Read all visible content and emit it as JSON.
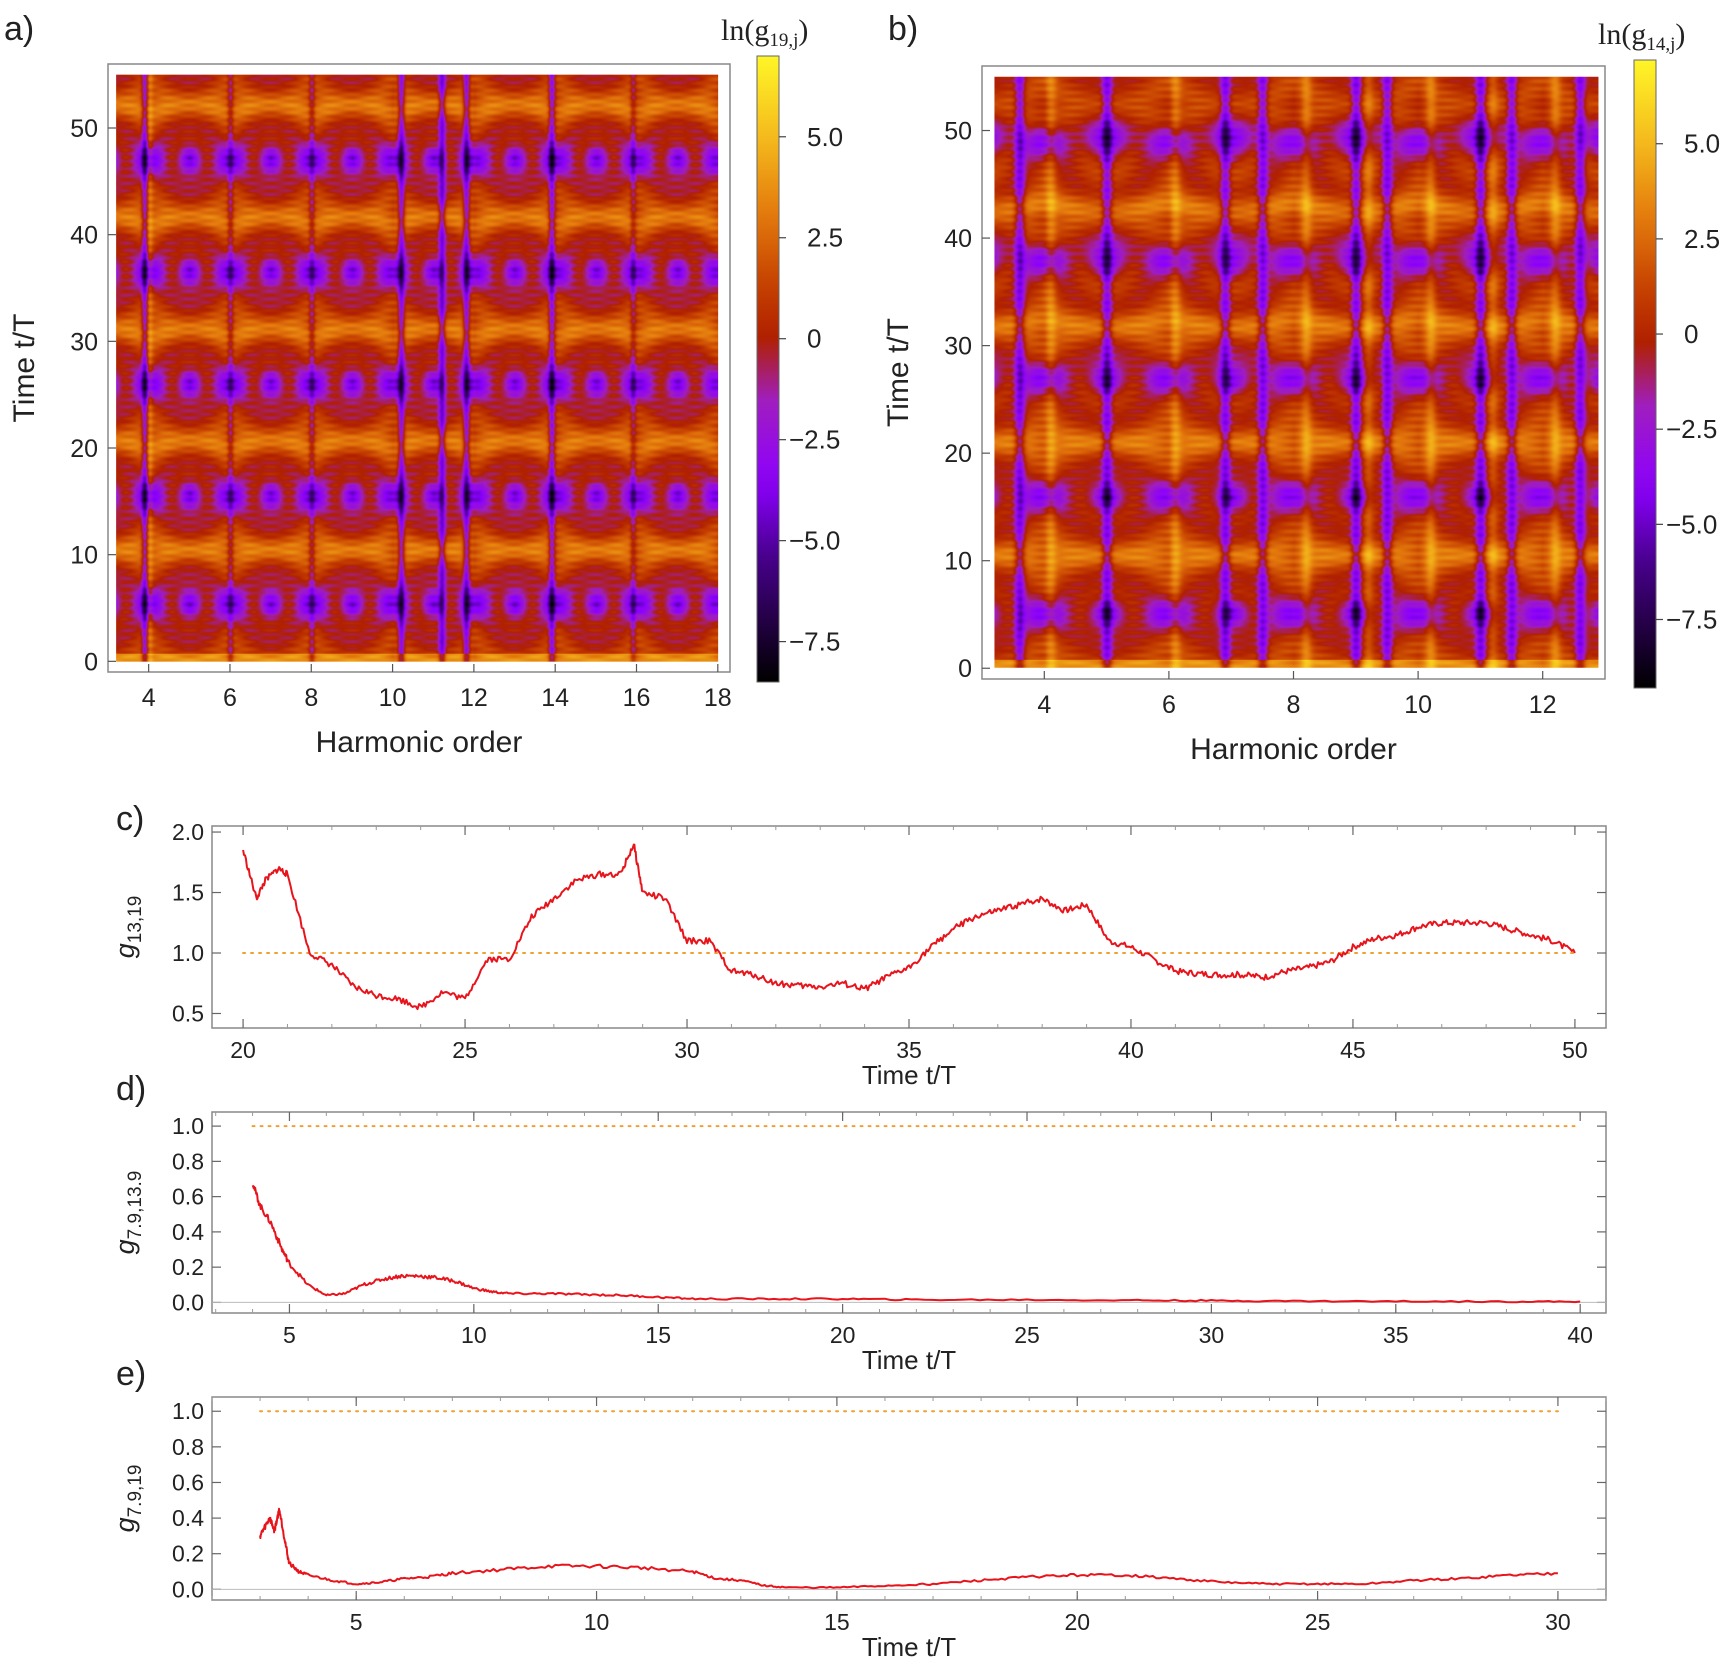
{
  "figure": {
    "accent_colors": {
      "trace": "#e8141c",
      "reference": "#f0a030",
      "frame": "#888888"
    }
  },
  "chart_data": [
    {
      "id": "a",
      "panel_label": "a)",
      "type": "heatmap",
      "xlabel": "Harmonic order",
      "ylabel": "Time  t/T",
      "xlim": [
        3,
        18.3
      ],
      "ylim": [
        -1,
        56
      ],
      "x_ticks": [
        "4",
        "6",
        "8",
        "10",
        "12",
        "14",
        "16",
        "18"
      ],
      "y_ticks": [
        "0",
        "10",
        "20",
        "30",
        "40",
        "50"
      ],
      "colorbar_title": "ln(g19,j)",
      "colorbar_title_main": "ln(g",
      "colorbar_title_sub": "19,j",
      "colorbar_title_close": ")",
      "colorbar_range": [
        -8.5,
        7.0
      ],
      "colorbar_ticks": [
        "5.0",
        "2.5",
        "0",
        "−2.5",
        "−5.0",
        "−7.5"
      ],
      "colorbar_tick_values": [
        5.0,
        2.5,
        0,
        -2.5,
        -5.0,
        -7.5
      ],
      "x_extent": [
        3.2,
        18.0
      ],
      "y_extent": [
        0,
        55
      ],
      "valley_harmonics": [
        3.9,
        6.0,
        8.0,
        10.2,
        11.2,
        11.8,
        13.9,
        15.9
      ],
      "bright_harmonics": [
        4.0,
        6.0,
        8.0,
        15.9
      ],
      "low_bands": [
        5.5,
        15.5,
        26,
        36.5,
        47
      ],
      "high_bands": [
        10.5,
        20.5,
        31,
        41.5,
        52
      ],
      "value_range": [
        -7.5,
        6.5
      ]
    },
    {
      "id": "b",
      "panel_label": "b)",
      "type": "heatmap",
      "xlabel": "Harmonic order",
      "ylabel": "Time  t/T",
      "xlim": [
        3,
        13
      ],
      "ylim": [
        -1,
        56
      ],
      "x_ticks": [
        "4",
        "6",
        "8",
        "10",
        "12"
      ],
      "y_ticks": [
        "0",
        "10",
        "20",
        "30",
        "40",
        "50"
      ],
      "colorbar_title": "ln(g14,j)",
      "colorbar_title_main": "ln(g",
      "colorbar_title_sub": "14,j",
      "colorbar_title_close": ")",
      "colorbar_range": [
        -9.3,
        7.2
      ],
      "colorbar_ticks": [
        "5.0",
        "2.5",
        "0",
        "−2.5",
        "−5.0",
        "−7.5"
      ],
      "colorbar_tick_values": [
        5.0,
        2.5,
        0,
        -2.5,
        -5.0,
        -7.5
      ],
      "x_extent": [
        3.2,
        12.9
      ],
      "y_extent": [
        0,
        55
      ],
      "valley_harmonics": [
        3.6,
        5.0,
        6.9,
        7.5,
        9.0,
        9.5,
        11.0,
        11.5,
        12.6
      ],
      "bright_harmonics": [
        4.1,
        6.1,
        8.2,
        9.2,
        10.2,
        11.2,
        12.2
      ],
      "low_bands": [
        5,
        16,
        27,
        38,
        49
      ],
      "high_bands": [
        10.5,
        21,
        32,
        43
      ],
      "value_range": [
        -7.5,
        5.5
      ]
    },
    {
      "id": "c",
      "panel_label": "c)",
      "type": "line",
      "xlabel": "Time  t/T",
      "ylabel_main": "g",
      "ylabel_sub": "13,19",
      "xlim": [
        19.3,
        50.7
      ],
      "ylim": [
        0.38,
        2.05
      ],
      "x_ticks": [
        20,
        25,
        30,
        35,
        40,
        45,
        50
      ],
      "y_ticks": [
        0.5,
        1.0,
        1.5,
        2.0
      ],
      "y_tick_labels": [
        "0.5",
        "1.0",
        "1.5",
        "2.0"
      ],
      "reference_line": 1.0,
      "series": [
        {
          "name": "g13,19",
          "x": [
            20.0,
            20.3,
            20.5,
            20.8,
            21.0,
            21.5,
            22.0,
            22.5,
            23.0,
            23.5,
            24.0,
            24.5,
            25.0,
            25.5,
            26.0,
            26.5,
            27.0,
            27.5,
            28.0,
            28.5,
            28.8,
            29.0,
            29.5,
            30.0,
            30.5,
            31.0,
            31.5,
            32.0,
            32.5,
            33.0,
            33.5,
            34.0,
            34.5,
            35.0,
            35.5,
            36.0,
            36.5,
            37.0,
            37.5,
            38.0,
            38.5,
            39.0,
            39.5,
            40.0,
            40.5,
            41.0,
            41.5,
            42.0,
            42.5,
            43.0,
            43.5,
            44.0,
            44.5,
            45.0,
            45.5,
            46.0,
            46.5,
            47.0,
            47.5,
            48.0,
            48.5,
            49.0,
            49.5,
            50.0
          ],
          "values": [
            1.85,
            1.45,
            1.6,
            1.7,
            1.65,
            1.0,
            0.9,
            0.72,
            0.65,
            0.62,
            0.55,
            0.68,
            0.62,
            0.95,
            0.95,
            1.3,
            1.45,
            1.6,
            1.65,
            1.65,
            1.9,
            1.5,
            1.45,
            1.1,
            1.1,
            0.85,
            0.82,
            0.75,
            0.73,
            0.72,
            0.75,
            0.7,
            0.8,
            0.88,
            1.05,
            1.2,
            1.3,
            1.35,
            1.4,
            1.45,
            1.35,
            1.4,
            1.1,
            1.05,
            0.95,
            0.85,
            0.83,
            0.82,
            0.82,
            0.8,
            0.85,
            0.88,
            0.93,
            1.05,
            1.12,
            1.15,
            1.22,
            1.25,
            1.25,
            1.25,
            1.2,
            1.15,
            1.1,
            1.0
          ]
        }
      ]
    },
    {
      "id": "d",
      "panel_label": "d)",
      "type": "line",
      "xlabel": "Time  t/T",
      "ylabel_main": "g",
      "ylabel_sub": "7.9,13.9",
      "xlim": [
        2.9,
        40.7
      ],
      "ylim": [
        -0.06,
        1.08
      ],
      "x_ticks": [
        5,
        10,
        15,
        20,
        25,
        30,
        35,
        40
      ],
      "y_ticks": [
        0.0,
        0.2,
        0.4,
        0.6,
        0.8,
        1.0
      ],
      "y_tick_labels": [
        "0.0",
        "0.2",
        "0.4",
        "0.6",
        "0.8",
        "1.0"
      ],
      "reference_line": 1.0,
      "series": [
        {
          "name": "g7.9,13.9",
          "x": [
            4.0,
            4.2,
            4.5,
            4.8,
            5.0,
            5.5,
            6.0,
            6.5,
            7.0,
            7.5,
            8.0,
            8.5,
            9.0,
            9.5,
            10.0,
            10.5,
            11.0,
            12.0,
            13.0,
            14.0,
            15.0,
            16.0,
            18.0,
            20.0,
            22.0,
            25.0,
            28.0,
            30.0,
            32.0,
            35.0,
            38.0,
            40.0
          ],
          "values": [
            0.68,
            0.55,
            0.45,
            0.3,
            0.22,
            0.1,
            0.04,
            0.05,
            0.1,
            0.13,
            0.15,
            0.15,
            0.14,
            0.12,
            0.08,
            0.06,
            0.05,
            0.05,
            0.045,
            0.04,
            0.03,
            0.02,
            0.02,
            0.02,
            0.015,
            0.015,
            0.012,
            0.01,
            0.008,
            0.006,
            0.005,
            0.005
          ]
        }
      ]
    },
    {
      "id": "e",
      "panel_label": "e)",
      "type": "line",
      "xlabel": "Time  t/T",
      "ylabel_main": "g",
      "ylabel_sub": "7.9,19",
      "xlim": [
        2.0,
        31.0
      ],
      "ylim": [
        -0.06,
        1.08
      ],
      "x_ticks": [
        5,
        10,
        15,
        20,
        25,
        30
      ],
      "y_ticks": [
        0.0,
        0.2,
        0.4,
        0.6,
        0.8,
        1.0
      ],
      "y_tick_labels": [
        "0.0",
        "0.2",
        "0.4",
        "0.6",
        "0.8",
        "1.0"
      ],
      "reference_line": 1.0,
      "series": [
        {
          "name": "g7.9,19",
          "x": [
            3.0,
            3.1,
            3.2,
            3.3,
            3.4,
            3.5,
            3.6,
            3.8,
            4.0,
            4.5,
            5.0,
            5.5,
            6.0,
            6.5,
            7.0,
            8.0,
            9.0,
            10.0,
            11.0,
            12.0,
            12.5,
            13.0,
            13.5,
            14.0,
            15.0,
            16.0,
            17.0,
            18.0,
            19.0,
            20.0,
            21.0,
            22.0,
            23.0,
            24.0,
            25.0,
            26.0,
            27.0,
            28.0,
            29.0,
            30.0
          ],
          "values": [
            0.3,
            0.35,
            0.4,
            0.33,
            0.45,
            0.3,
            0.15,
            0.1,
            0.08,
            0.05,
            0.03,
            0.04,
            0.06,
            0.07,
            0.09,
            0.11,
            0.13,
            0.13,
            0.12,
            0.1,
            0.06,
            0.05,
            0.02,
            0.01,
            0.01,
            0.02,
            0.03,
            0.05,
            0.07,
            0.08,
            0.08,
            0.06,
            0.04,
            0.03,
            0.03,
            0.03,
            0.05,
            0.06,
            0.08,
            0.09
          ]
        }
      ]
    }
  ]
}
